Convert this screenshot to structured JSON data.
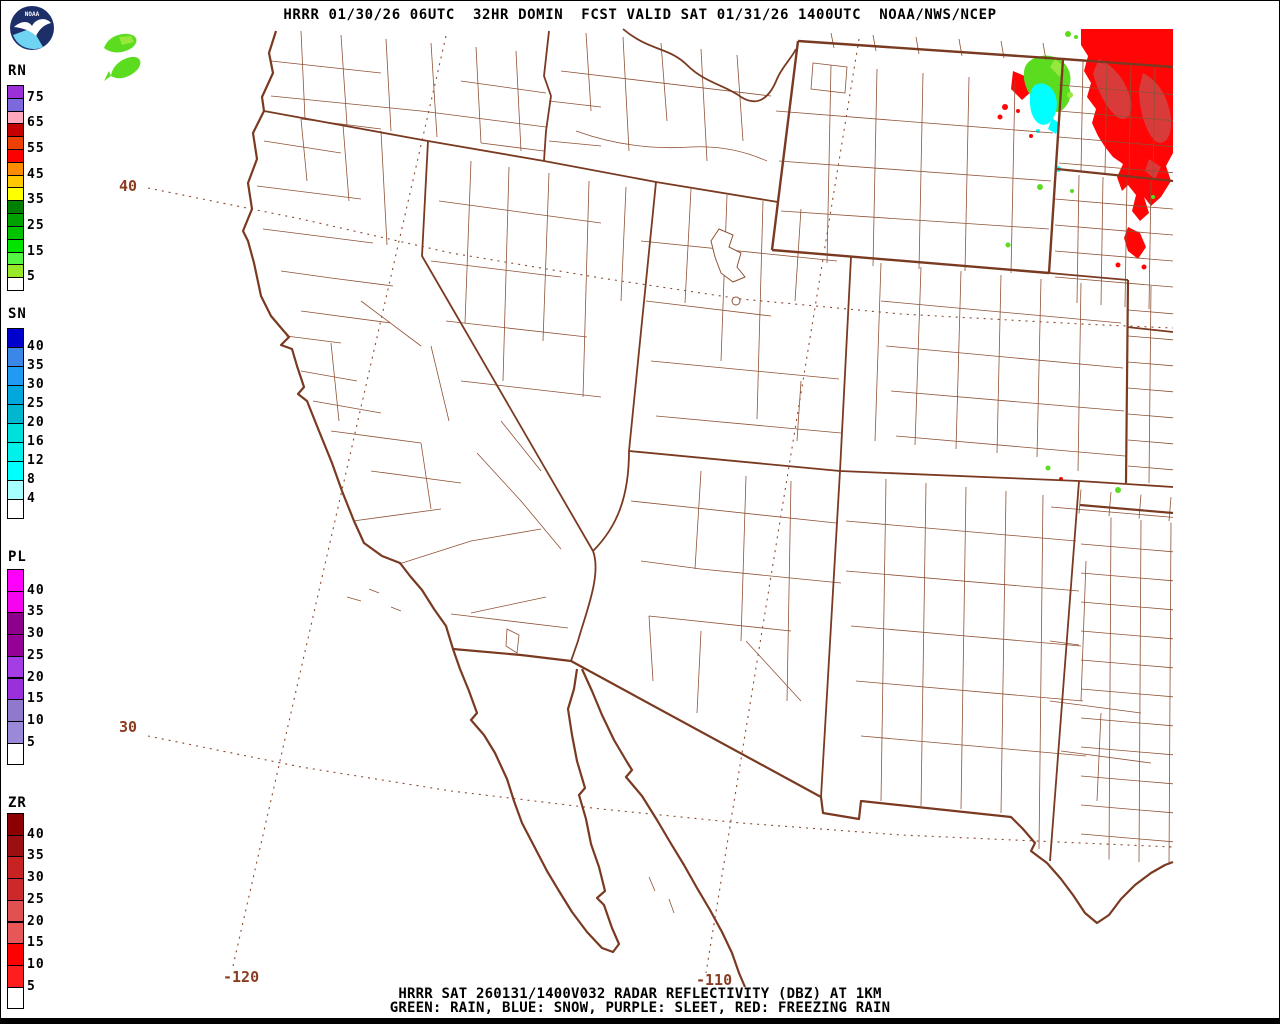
{
  "header": {
    "title": "HRRR 01/30/26 06UTC  32HR DOMIN  FCST VALID SAT 01/31/26 1400UTC  NOAA/NWS/NCEP"
  },
  "footer": {
    "line1": "HRRR SAT 260131/1400V032 RADAR REFLECTIVITY (DBZ) AT 1KM",
    "line2": "GREEN: RAIN, BLUE: SNOW, PURPLE: SLEET, RED: FREEZING RAIN"
  },
  "logo": {
    "label": "NOAA"
  },
  "map": {
    "lat_labels": [
      {
        "text": "40"
      },
      {
        "text": "30"
      }
    ],
    "lon_labels": [
      {
        "text": "-120"
      },
      {
        "text": "-110"
      }
    ],
    "state_line_color": "#7a3a22",
    "county_line_color": "#8f5236",
    "graticule_color": "#8a4a30",
    "label_color": "#8a3c20"
  },
  "radar": {
    "rain": "#5cdc1e",
    "rain_light": "#97e83e",
    "snow": "#00ffff",
    "snow_light": "#8ff4ff",
    "freezing_rain": "#ff0505",
    "freezing_rain_dark": "#d93a3a"
  },
  "legends": [
    {
      "id": "RN",
      "title": "RN",
      "cells": [
        "#9b30d9",
        "#7d68de",
        "#ffa8be",
        "#c40000",
        "#ee4000",
        "#ff0000",
        "#ff8c00",
        "#ffc800",
        "#ffff00",
        "#007f00",
        "#00a100",
        "#00c300",
        "#00e400",
        "#55f544",
        "#97e829",
        "#ffffff"
      ],
      "labels": [
        {
          "text": "75",
          "after": 0
        },
        {
          "text": "65",
          "after": 2
        },
        {
          "text": "55",
          "after": 4
        },
        {
          "text": "45",
          "after": 6
        },
        {
          "text": "35",
          "after": 8
        },
        {
          "text": "25",
          "after": 10
        },
        {
          "text": "15",
          "after": 12
        },
        {
          "text": "5",
          "after": 14
        }
      ]
    },
    {
      "id": "SN",
      "title": "SN",
      "cells": [
        "#0000cd",
        "#3a87e8",
        "#2299f2",
        "#00a8de",
        "#00b7cf",
        "#00e0da",
        "#00f0ea",
        "#00ffff",
        "#a8ffff",
        "#ffffff"
      ],
      "labels": [
        {
          "text": "40",
          "after": 0
        },
        {
          "text": "35",
          "after": 1
        },
        {
          "text": "30",
          "after": 2
        },
        {
          "text": "25",
          "after": 3
        },
        {
          "text": "20",
          "after": 4
        },
        {
          "text": "16",
          "after": 5
        },
        {
          "text": "12",
          "after": 6
        },
        {
          "text": "8",
          "after": 7
        },
        {
          "text": "4",
          "after": 8
        }
      ]
    },
    {
      "id": "PL",
      "title": "PL",
      "cells": [
        "#ff00ff",
        "#f704ef",
        "#8c008c",
        "#960096",
        "#a43ee4",
        "#9930dc",
        "#9078cc",
        "#9c88d8",
        "#ffffff"
      ],
      "labels": [
        {
          "text": "40",
          "after": 0
        },
        {
          "text": "35",
          "after": 1
        },
        {
          "text": "30",
          "after": 2
        },
        {
          "text": "25",
          "after": 3
        },
        {
          "text": "20",
          "after": 4
        },
        {
          "text": "15",
          "after": 5
        },
        {
          "text": "10",
          "after": 6
        },
        {
          "text": "5",
          "after": 7
        }
      ]
    },
    {
      "id": "ZR",
      "title": "ZR",
      "cells": [
        "#8b0000",
        "#9a1010",
        "#c62424",
        "#cc2a2a",
        "#e25050",
        "#e65858",
        "#ff0000",
        "#ff1e1e",
        "#ffffff"
      ],
      "labels": [
        {
          "text": "40",
          "after": 0
        },
        {
          "text": "35",
          "after": 1
        },
        {
          "text": "30",
          "after": 2
        },
        {
          "text": "25",
          "after": 3
        },
        {
          "text": "20",
          "after": 4
        },
        {
          "text": "15",
          "after": 5
        },
        {
          "text": "10",
          "after": 6
        },
        {
          "text": "5",
          "after": 7
        }
      ]
    }
  ]
}
